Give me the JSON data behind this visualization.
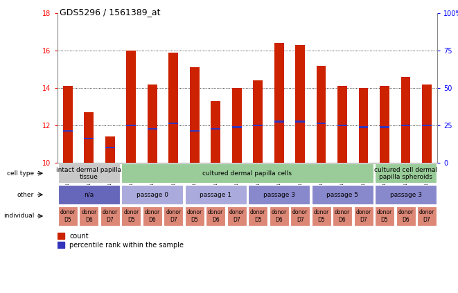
{
  "title": "GDS5296 / 1561389_at",
  "samples": [
    "GSM1090232",
    "GSM1090233",
    "GSM1090234",
    "GSM1090235",
    "GSM1090236",
    "GSM1090237",
    "GSM1090238",
    "GSM1090239",
    "GSM1090240",
    "GSM1090241",
    "GSM1090242",
    "GSM1090243",
    "GSM1090244",
    "GSM1090245",
    "GSM1090246",
    "GSM1090247",
    "GSM1090248",
    "GSM1090249"
  ],
  "bar_values": [
    14.1,
    12.7,
    11.4,
    16.0,
    14.2,
    15.9,
    15.1,
    13.3,
    14.0,
    14.4,
    16.4,
    16.3,
    15.2,
    14.1,
    14.0,
    14.1,
    14.6,
    14.2
  ],
  "blue_values": [
    11.7,
    11.3,
    10.8,
    12.0,
    11.8,
    12.1,
    11.7,
    11.8,
    11.9,
    12.0,
    12.2,
    12.2,
    12.1,
    12.0,
    11.9,
    11.9,
    12.0,
    12.0
  ],
  "ymin": 10,
  "ymax": 18,
  "yticks_left": [
    10,
    12,
    14,
    16,
    18
  ],
  "yticks_right": [
    0,
    25,
    50,
    75,
    100
  ],
  "bar_color": "#cc2200",
  "blue_color": "#3333bb",
  "cell_type_groups": [
    {
      "label": "intact dermal papilla\ntissue",
      "start": 0,
      "end": 3,
      "color": "#c8c8c8"
    },
    {
      "label": "cultured dermal papilla cells",
      "start": 3,
      "end": 15,
      "color": "#99cc99"
    },
    {
      "label": "cultured cell dermal\npapilla spheroids",
      "start": 15,
      "end": 18,
      "color": "#99cc99"
    }
  ],
  "other_groups": [
    {
      "label": "n/a",
      "start": 0,
      "end": 3,
      "color": "#6666bb"
    },
    {
      "label": "passage 0",
      "start": 3,
      "end": 6,
      "color": "#aaaadd"
    },
    {
      "label": "passage 1",
      "start": 6,
      "end": 9,
      "color": "#aaaadd"
    },
    {
      "label": "passage 3",
      "start": 9,
      "end": 12,
      "color": "#8888cc"
    },
    {
      "label": "passage 5",
      "start": 12,
      "end": 15,
      "color": "#8888cc"
    },
    {
      "label": "passage 3",
      "start": 15,
      "end": 18,
      "color": "#8888cc"
    }
  ],
  "individual_groups": [
    {
      "label": "donor\nD5",
      "start": 0,
      "end": 1
    },
    {
      "label": "donor\nD6",
      "start": 1,
      "end": 2
    },
    {
      "label": "donor\nD7",
      "start": 2,
      "end": 3
    },
    {
      "label": "donor\nD5",
      "start": 3,
      "end": 4
    },
    {
      "label": "donor\nD6",
      "start": 4,
      "end": 5
    },
    {
      "label": "donor\nD7",
      "start": 5,
      "end": 6
    },
    {
      "label": "donor\nD5",
      "start": 6,
      "end": 7
    },
    {
      "label": "donor\nD6",
      "start": 7,
      "end": 8
    },
    {
      "label": "donor\nD7",
      "start": 8,
      "end": 9
    },
    {
      "label": "donor\nD5",
      "start": 9,
      "end": 10
    },
    {
      "label": "donor\nD6",
      "start": 10,
      "end": 11
    },
    {
      "label": "donor\nD7",
      "start": 11,
      "end": 12
    },
    {
      "label": "donor\nD5",
      "start": 12,
      "end": 13
    },
    {
      "label": "donor\nD6",
      "start": 13,
      "end": 14
    },
    {
      "label": "donor\nD7",
      "start": 14,
      "end": 15
    },
    {
      "label": "donor\nD5",
      "start": 15,
      "end": 16
    },
    {
      "label": "donor\nD6",
      "start": 16,
      "end": 17
    },
    {
      "label": "donor\nD7",
      "start": 17,
      "end": 18
    }
  ],
  "individual_color": "#dd8877",
  "row_labels": [
    "cell type",
    "other",
    "individual"
  ],
  "legend_items": [
    {
      "label": "count",
      "color": "#cc2200"
    },
    {
      "label": "percentile rank within the sample",
      "color": "#3333bb"
    }
  ]
}
